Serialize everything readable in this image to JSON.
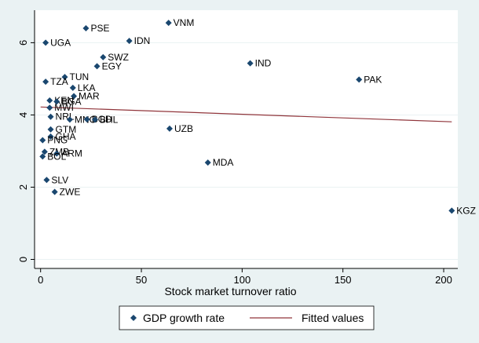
{
  "chart_data": {
    "type": "scatter",
    "xlabel": "Stock market turnover ratio",
    "ylabel": "",
    "xlim": [
      -3,
      207
    ],
    "ylim": [
      -0.25,
      6.9
    ],
    "xticks": [
      "0",
      "50",
      "100",
      "150",
      "200"
    ],
    "xtick_values": [
      0,
      50,
      100,
      150,
      200
    ],
    "yticks": [
      "0",
      "2",
      "4",
      "6"
    ],
    "ytick_values": [
      0,
      2,
      4,
      6
    ],
    "grid": true,
    "legend_position": "bottom",
    "series": [
      {
        "name": "GDP growth rate",
        "kind": "scatter",
        "color": "#1a476f",
        "points": [
          {
            "label": "VNM",
            "x": 63.5,
            "y": 6.55
          },
          {
            "label": "PSE",
            "x": 22.5,
            "y": 6.4
          },
          {
            "label": "IDN",
            "x": 44,
            "y": 6.05
          },
          {
            "label": "UGA",
            "x": 2.5,
            "y": 6.0
          },
          {
            "label": "SWZ",
            "x": 31,
            "y": 5.6
          },
          {
            "label": "IND",
            "x": 104,
            "y": 5.43
          },
          {
            "label": "EGY",
            "x": 28,
            "y": 5.35
          },
          {
            "label": "TUN",
            "x": 12,
            "y": 5.05
          },
          {
            "label": "PAK",
            "x": 158,
            "y": 4.98
          },
          {
            "label": "TZA",
            "x": 2.5,
            "y": 4.92
          },
          {
            "label": "LKA",
            "x": 16,
            "y": 4.75
          },
          {
            "label": "MAR",
            "x": 16.5,
            "y": 4.52
          },
          {
            "label": "KEN",
            "x": 4.5,
            "y": 4.4
          },
          {
            "label": "BGA",
            "x": 8,
            "y": 4.37
          },
          {
            "label": "MWI",
            "x": 4.5,
            "y": 4.2
          },
          {
            "label": "NRL",
            "x": 5,
            "y": 3.95
          },
          {
            "label": "MNG",
            "x": 14.5,
            "y": 3.87
          },
          {
            "label": "BGD",
            "x": 23,
            "y": 3.88
          },
          {
            "label": "BHL",
            "x": 27,
            "y": 3.87
          },
          {
            "label": "UZB",
            "x": 64,
            "y": 3.62
          },
          {
            "label": "GTM",
            "x": 5,
            "y": 3.6
          },
          {
            "label": "GHA",
            "x": 5,
            "y": 3.4
          },
          {
            "label": "PNG",
            "x": 1,
            "y": 3.3
          },
          {
            "label": "ZMB",
            "x": 2,
            "y": 2.98
          },
          {
            "label": "ARM",
            "x": 8,
            "y": 2.93
          },
          {
            "label": "BOL",
            "x": 1,
            "y": 2.85
          },
          {
            "label": "MDA",
            "x": 83,
            "y": 2.68
          },
          {
            "label": "SLV",
            "x": 3,
            "y": 2.2
          },
          {
            "label": "ZWE",
            "x": 7,
            "y": 1.87
          },
          {
            "label": "KGZ",
            "x": 204,
            "y": 1.35
          }
        ]
      },
      {
        "name": "Fitted values",
        "kind": "line",
        "color": "#90353b",
        "x": [
          0,
          204
        ],
        "y": [
          4.22,
          3.81
        ]
      }
    ]
  }
}
